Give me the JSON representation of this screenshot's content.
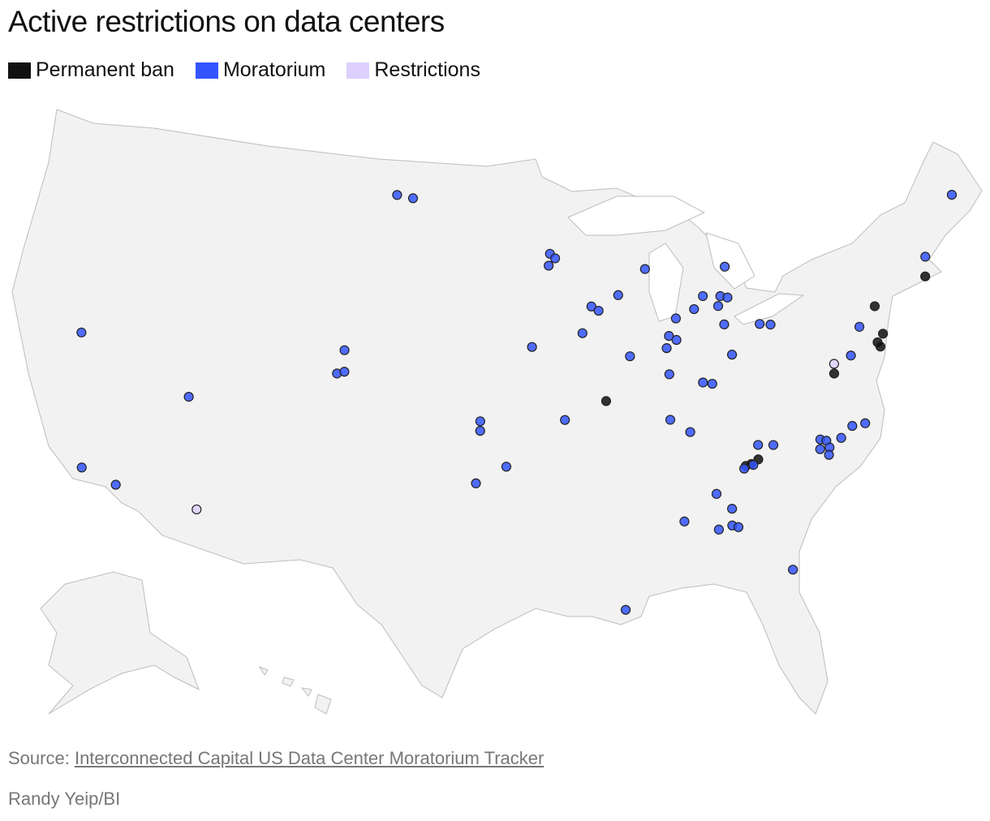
{
  "chart_data": {
    "type": "map",
    "title": "Active restrictions on data centers",
    "series": [
      {
        "name": "Permanent ban",
        "color": "#111111",
        "lon": [
          -71.1,
          -74.3,
          -74.2,
          -74.6,
          -74.5,
          -77.3,
          -89.9,
          -82.1,
          -82.8,
          -82.5
        ],
        "lat": [
          41.9,
          41.2,
          40.0,
          39.7,
          39.5,
          38.8,
          38.9,
          35.8,
          35.6,
          35.65
        ]
      },
      {
        "name": "Moratorium",
        "color": "#3355ff",
        "lon": [
          -102.1,
          -101.1,
          -92.7,
          -92.4,
          -92.8,
          -87.1,
          -82.4,
          -88.8,
          -90.4,
          -90.0,
          -83.9,
          -82.9,
          -82.5,
          -83.1,
          -84.5,
          -85.6,
          -82.9,
          -80.9,
          -80.3,
          -91.0,
          -86.1,
          -85.7,
          -86.3,
          -93.9,
          -88.4,
          -82.7,
          -86.3,
          -104.5,
          -104.8,
          -104.4,
          -119.2,
          -112.7,
          -84.5,
          -84.0,
          -92.2,
          -86.5,
          -85.5,
          -96.8,
          -96.8,
          -117.5,
          -115.6,
          -95.4,
          -97.0,
          -82.0,
          -81.2,
          -82.9,
          -82.4,
          -78.7,
          -78.4,
          -78.8,
          -78.3,
          -78.4,
          -77.6,
          -76.9,
          -76.2,
          -76.2,
          -75.4,
          -70.8,
          -68.3,
          -84.5,
          -86.3,
          -83.8,
          -84.6,
          -83.9,
          -83.6,
          -81.2,
          -89.6
        ],
        "lat": [
          47.6,
          47.5,
          45.2,
          45.0,
          44.7,
          44.3,
          44.0,
          43.3,
          42.9,
          42.7,
          42.9,
          42.8,
          42.7,
          42.4,
          42.4,
          42.1,
          41.6,
          41.4,
          41.3,
          41.8,
          41.4,
          41.2,
          40.9,
          41.3,
          40.7,
          40.3,
          39.8,
          40.9,
          39.9,
          40.0,
          39.8,
          38.1,
          39.3,
          39.2,
          38.2,
          37.9,
          37.3,
          38.2,
          37.8,
          34.3,
          33.9,
          36.3,
          35.6,
          36.4,
          36.3,
          35.5,
          35.6,
          36.2,
          36.1,
          35.8,
          35.8,
          35.5,
          36.1,
          36.5,
          36.5,
          39.4,
          40.5,
          42.7,
          44.9,
          34.6,
          33.6,
          33.9,
          33.1,
          33.2,
          33.1,
          31.0,
          30.1
        ]
      },
      {
        "name": "Restrictions",
        "color": "#ddd0ff",
        "lon": [
          -111.3,
          -77.2
        ],
        "lat": [
          33.5,
          39.2
        ]
      }
    ],
    "source_label": "Source:",
    "source_link": "Interconnected Capital US Data Center Moratorium Tracker",
    "credit": "Randy Yeip/BI"
  }
}
